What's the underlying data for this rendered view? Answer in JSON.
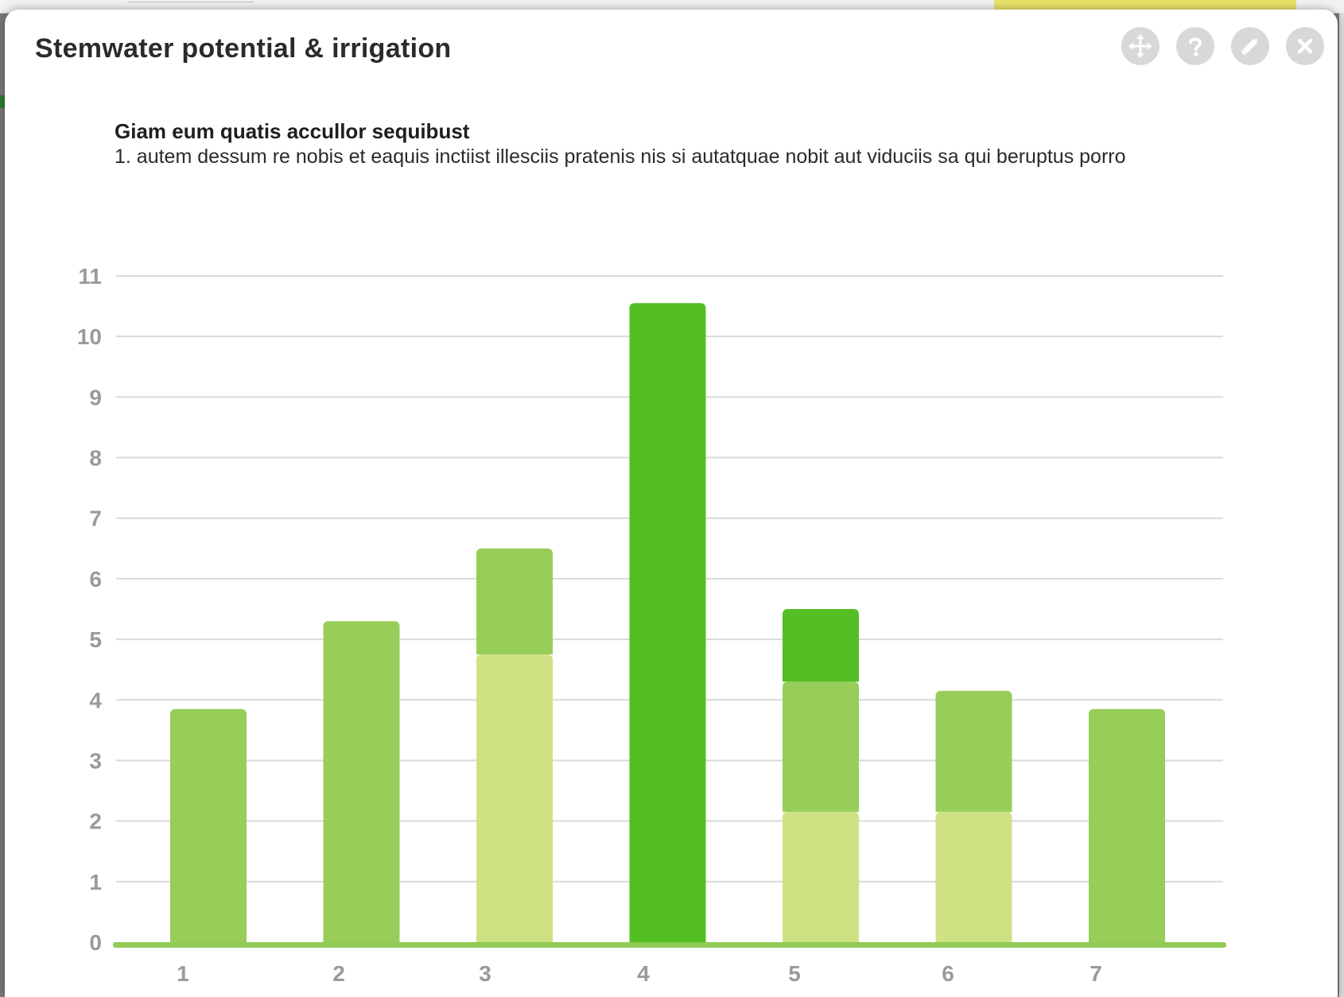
{
  "dialog": {
    "title": "Stemwater potential & irrigation"
  },
  "toolbar": {
    "move_icon": "move-icon",
    "help_icon": "help-icon",
    "edit_icon": "pencil-icon",
    "close_icon": "close-icon"
  },
  "chart_heading": "Giam eum quatis accullor sequibust",
  "chart_description": "1. autem dessum re nobis et eaquis inctiist illesciis pratenis nis si autatquae nobit aut viduciis sa qui beruptus porro",
  "chart_data": {
    "type": "bar",
    "stacked": true,
    "categories": [
      "1",
      "2",
      "3",
      "4",
      "5",
      "6",
      "7"
    ],
    "series": [
      {
        "color": "#cfe283",
        "values": [
          0,
          0,
          4.75,
          0,
          2.15,
          2.15,
          0
        ]
      },
      {
        "color": "#98cd5a",
        "values": [
          3.85,
          5.3,
          1.75,
          0,
          2.15,
          2.0,
          3.85
        ]
      },
      {
        "color": "#53bf24",
        "values": [
          0,
          0,
          0,
          10.55,
          1.2,
          0,
          0
        ]
      }
    ],
    "ylim": [
      0,
      11
    ],
    "yticks": [
      0,
      1,
      2,
      3,
      4,
      5,
      6,
      7,
      8,
      9,
      10,
      11
    ],
    "grid": true,
    "axis_color": "#8fcb55"
  }
}
